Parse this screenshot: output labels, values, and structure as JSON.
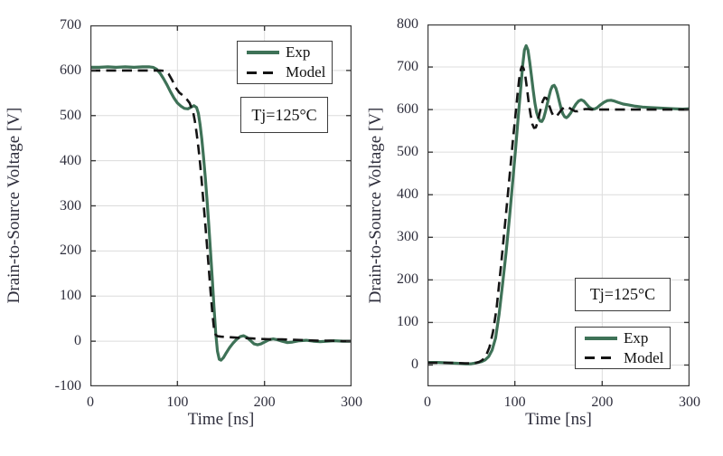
{
  "colors": {
    "exp_line": "#3e7257",
    "model_line": "#141414",
    "grid": "#dcdcdc",
    "axis": "#3c3c3c",
    "tick_text": "#2e2e3c",
    "background": "#ffffff"
  },
  "chart_data": [
    {
      "type": "line",
      "name": "turn-on-transient",
      "title": "",
      "xlabel": "Time [ns]",
      "ylabel": "Drain-to-Source Voltage [V]",
      "xlim": [
        0,
        300
      ],
      "ylim": [
        -100,
        700
      ],
      "xticks": [
        0,
        100,
        200,
        300
      ],
      "yticks": [
        -100,
        0,
        100,
        200,
        300,
        400,
        500,
        600,
        700
      ],
      "grid": true,
      "annotation": "Tj=125°C",
      "legend": {
        "position": "northeast",
        "entries": [
          {
            "label": "Exp",
            "style": "solid",
            "color": "#3e7257"
          },
          {
            "label": "Model",
            "style": "dashed",
            "color": "#141414"
          }
        ]
      },
      "series": [
        {
          "name": "Exp",
          "style": "solid",
          "points": [
            [
              0,
              607
            ],
            [
              10,
              607
            ],
            [
              20,
              608
            ],
            [
              30,
              607
            ],
            [
              40,
              608
            ],
            [
              50,
              607
            ],
            [
              60,
              608
            ],
            [
              68,
              608
            ],
            [
              72,
              607
            ],
            [
              76,
              603
            ],
            [
              80,
              594
            ],
            [
              84,
              582
            ],
            [
              88,
              568
            ],
            [
              92,
              553
            ],
            [
              96,
              539
            ],
            [
              100,
              528
            ],
            [
              104,
              521
            ],
            [
              108,
              516
            ],
            [
              112,
              515
            ],
            [
              116,
              519
            ],
            [
              119,
              522
            ],
            [
              122,
              518
            ],
            [
              124,
              505
            ],
            [
              126,
              480
            ],
            [
              128,
              448
            ],
            [
              130,
              408
            ],
            [
              132,
              362
            ],
            [
              134,
              312
            ],
            [
              136,
              258
            ],
            [
              138,
              200
            ],
            [
              140,
              138
            ],
            [
              142,
              75
            ],
            [
              144,
              18
            ],
            [
              146,
              -22
            ],
            [
              148,
              -40
            ],
            [
              150,
              -42
            ],
            [
              153,
              -36
            ],
            [
              156,
              -26
            ],
            [
              160,
              -14
            ],
            [
              164,
              -4
            ],
            [
              168,
              4
            ],
            [
              172,
              10
            ],
            [
              176,
              12
            ],
            [
              180,
              8
            ],
            [
              184,
              1
            ],
            [
              188,
              -6
            ],
            [
              192,
              -8
            ],
            [
              196,
              -6
            ],
            [
              200,
              -2
            ],
            [
              205,
              3
            ],
            [
              210,
              5
            ],
            [
              215,
              3
            ],
            [
              220,
              0
            ],
            [
              226,
              -3
            ],
            [
              232,
              -2
            ],
            [
              240,
              1
            ],
            [
              248,
              2
            ],
            [
              256,
              0
            ],
            [
              264,
              -1
            ],
            [
              272,
              0
            ],
            [
              280,
              1
            ],
            [
              290,
              0
            ],
            [
              300,
              0
            ]
          ]
        },
        {
          "name": "Model",
          "style": "dashed",
          "points": [
            [
              0,
              600
            ],
            [
              20,
              600
            ],
            [
              40,
              600
            ],
            [
              60,
              600
            ],
            [
              80,
              600
            ],
            [
              86,
              599
            ],
            [
              90,
              592
            ],
            [
              94,
              578
            ],
            [
              98,
              562
            ],
            [
              102,
              551
            ],
            [
              106,
              545
            ],
            [
              110,
              538
            ],
            [
              114,
              528
            ],
            [
              116,
              518
            ],
            [
              118,
              508
            ],
            [
              120,
              488
            ],
            [
              122,
              462
            ],
            [
              124,
              430
            ],
            [
              126,
              394
            ],
            [
              128,
              352
            ],
            [
              130,
              306
            ],
            [
              132,
              258
            ],
            [
              134,
              210
            ],
            [
              136,
              162
            ],
            [
              138,
              112
            ],
            [
              140,
              64
            ],
            [
              142,
              28
            ],
            [
              144,
              14
            ],
            [
              146,
              11
            ],
            [
              150,
              10
            ],
            [
              158,
              9
            ],
            [
              166,
              8
            ],
            [
              176,
              7
            ],
            [
              186,
              6
            ],
            [
              196,
              5
            ],
            [
              208,
              4
            ],
            [
              220,
              4
            ],
            [
              234,
              3
            ],
            [
              248,
              2
            ],
            [
              262,
              1
            ],
            [
              276,
              1
            ],
            [
              290,
              0
            ],
            [
              300,
              0
            ]
          ]
        }
      ]
    },
    {
      "type": "line",
      "name": "turn-off-transient",
      "title": "",
      "xlabel": "Time [ns]",
      "ylabel": "Drain-to-Source Voltage [V]",
      "xlim": [
        0,
        300
      ],
      "ylim": [
        -50,
        800
      ],
      "xticks": [
        0,
        100,
        200,
        300
      ],
      "yticks": [
        0,
        100,
        200,
        300,
        400,
        500,
        600,
        700,
        800
      ],
      "grid": true,
      "annotation": "Tj=125°C",
      "legend": {
        "position": "southeast",
        "entries": [
          {
            "label": "Exp",
            "style": "solid",
            "color": "#3e7257"
          },
          {
            "label": "Model",
            "style": "dashed",
            "color": "#141414"
          }
        ]
      },
      "series": [
        {
          "name": "Exp",
          "style": "solid",
          "points": [
            [
              0,
              6
            ],
            [
              12,
              6
            ],
            [
              24,
              5
            ],
            [
              36,
              4
            ],
            [
              44,
              3
            ],
            [
              50,
              3
            ],
            [
              56,
              5
            ],
            [
              62,
              8
            ],
            [
              66,
              12
            ],
            [
              70,
              20
            ],
            [
              74,
              35
            ],
            [
              78,
              64
            ],
            [
              82,
              120
            ],
            [
              86,
              190
            ],
            [
              90,
              265
            ],
            [
              94,
              350
            ],
            [
              98,
              440
            ],
            [
              101,
              510
            ],
            [
              104,
              585
            ],
            [
              107,
              655
            ],
            [
              109,
              705
            ],
            [
              111,
              740
            ],
            [
              113,
              750
            ],
            [
              115,
              740
            ],
            [
              117,
              712
            ],
            [
              119,
              680
            ],
            [
              121,
              645
            ],
            [
              123,
              615
            ],
            [
              125,
              593
            ],
            [
              127,
              580
            ],
            [
              129,
              573
            ],
            [
              131,
              572
            ],
            [
              133,
              580
            ],
            [
              135,
              595
            ],
            [
              137,
              612
            ],
            [
              139,
              630
            ],
            [
              141,
              646
            ],
            [
              143,
              655
            ],
            [
              145,
              657
            ],
            [
              147,
              650
            ],
            [
              149,
              636
            ],
            [
              151,
              618
            ],
            [
              153,
              602
            ],
            [
              155,
              590
            ],
            [
              157,
              583
            ],
            [
              159,
              581
            ],
            [
              161,
              584
            ],
            [
              164,
              592
            ],
            [
              167,
              603
            ],
            [
              170,
              613
            ],
            [
              173,
              620
            ],
            [
              176,
              623
            ],
            [
              179,
              620
            ],
            [
              182,
              613
            ],
            [
              185,
              606
            ],
            [
              188,
              602
            ],
            [
              191,
              601
            ],
            [
              194,
              604
            ],
            [
              198,
              611
            ],
            [
              202,
              617
            ],
            [
              206,
              621
            ],
            [
              210,
              622
            ],
            [
              214,
              620
            ],
            [
              218,
              617
            ],
            [
              224,
              613
            ],
            [
              230,
              611
            ],
            [
              238,
              608
            ],
            [
              246,
              606
            ],
            [
              254,
              605
            ],
            [
              262,
              604
            ],
            [
              272,
              603
            ],
            [
              282,
              602
            ],
            [
              292,
              601
            ],
            [
              300,
              602
            ]
          ]
        },
        {
          "name": "Model",
          "style": "dashed",
          "points": [
            [
              0,
              5
            ],
            [
              15,
              5
            ],
            [
              30,
              5
            ],
            [
              42,
              4
            ],
            [
              50,
              4
            ],
            [
              55,
              5
            ],
            [
              59,
              7
            ],
            [
              63,
              12
            ],
            [
              67,
              22
            ],
            [
              71,
              42
            ],
            [
              75,
              78
            ],
            [
              79,
              132
            ],
            [
              84,
              230
            ],
            [
              88,
              315
            ],
            [
              92,
              400
            ],
            [
              95,
              465
            ],
            [
              98,
              532
            ],
            [
              101,
              592
            ],
            [
              103,
              635
            ],
            [
              105,
              672
            ],
            [
              107,
              695
            ],
            [
              108,
              701
            ],
            [
              110,
              697
            ],
            [
              112,
              678
            ],
            [
              114,
              648
            ],
            [
              116,
              615
            ],
            [
              118,
              588
            ],
            [
              120,
              566
            ],
            [
              122,
              557
            ],
            [
              124,
              558
            ],
            [
              126,
              570
            ],
            [
              128,
              588
            ],
            [
              130,
              606
            ],
            [
              132,
              620
            ],
            [
              134,
              628
            ],
            [
              136,
              627
            ],
            [
              138,
              618
            ],
            [
              140,
              606
            ],
            [
              142,
              594
            ],
            [
              144,
              586
            ],
            [
              146,
              583
            ],
            [
              148,
              585
            ],
            [
              151,
              593
            ],
            [
              154,
              601
            ],
            [
              157,
              606
            ],
            [
              160,
              607
            ],
            [
              163,
              603
            ],
            [
              166,
              599
            ],
            [
              169,
              596
            ],
            [
              172,
              596
            ],
            [
              176,
              599
            ],
            [
              180,
              601
            ],
            [
              184,
              601
            ],
            [
              188,
              600
            ],
            [
              195,
              600
            ],
            [
              205,
              600
            ],
            [
              220,
              600
            ],
            [
              240,
              600
            ],
            [
              260,
              600
            ],
            [
              280,
              600
            ],
            [
              300,
              600
            ]
          ]
        }
      ]
    }
  ]
}
